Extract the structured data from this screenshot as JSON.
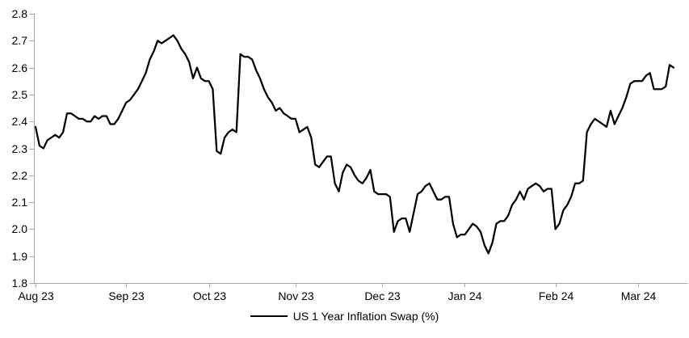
{
  "chart_data": {
    "type": "line",
    "title": "",
    "xlabel": "",
    "ylabel": "",
    "ylim": [
      1.8,
      2.8
    ],
    "y_ticks": [
      1.8,
      1.9,
      2.0,
      2.1,
      2.2,
      2.3,
      2.4,
      2.5,
      2.6,
      2.7,
      2.8
    ],
    "x_tick_labels": [
      "Aug 23",
      "Sep 23",
      "Oct 23",
      "Nov 23",
      "Dec 23",
      "Jan 24",
      "Feb 24",
      "Mar 24"
    ],
    "x_tick_indices": [
      0,
      23,
      44,
      66,
      88,
      109,
      132,
      153
    ],
    "grid": false,
    "legend_position": "bottom-center",
    "axis_color": "#a6a6a6",
    "text_color": "#000000",
    "series": [
      {
        "name": "US 1 Year Inflation Swap (%)",
        "color": "#000000",
        "values": [
          2.38,
          2.31,
          2.3,
          2.33,
          2.34,
          2.35,
          2.34,
          2.36,
          2.43,
          2.43,
          2.42,
          2.41,
          2.41,
          2.4,
          2.4,
          2.42,
          2.41,
          2.42,
          2.42,
          2.39,
          2.39,
          2.41,
          2.44,
          2.47,
          2.48,
          2.5,
          2.52,
          2.55,
          2.58,
          2.63,
          2.66,
          2.7,
          2.69,
          2.7,
          2.71,
          2.72,
          2.7,
          2.67,
          2.65,
          2.62,
          2.56,
          2.6,
          2.56,
          2.55,
          2.55,
          2.52,
          2.29,
          2.28,
          2.34,
          2.36,
          2.37,
          2.36,
          2.65,
          2.64,
          2.64,
          2.63,
          2.59,
          2.56,
          2.52,
          2.49,
          2.47,
          2.44,
          2.45,
          2.43,
          2.42,
          2.41,
          2.41,
          2.36,
          2.37,
          2.38,
          2.34,
          2.24,
          2.23,
          2.25,
          2.27,
          2.27,
          2.17,
          2.14,
          2.21,
          2.24,
          2.23,
          2.2,
          2.18,
          2.17,
          2.19,
          2.22,
          2.14,
          2.13,
          2.13,
          2.13,
          2.12,
          1.99,
          2.03,
          2.04,
          2.04,
          1.99,
          2.06,
          2.13,
          2.14,
          2.16,
          2.17,
          2.14,
          2.11,
          2.11,
          2.12,
          2.12,
          2.02,
          1.97,
          1.98,
          1.98,
          2.0,
          2.02,
          2.01,
          1.99,
          1.94,
          1.91,
          1.95,
          2.02,
          2.03,
          2.03,
          2.05,
          2.09,
          2.11,
          2.14,
          2.11,
          2.15,
          2.16,
          2.17,
          2.16,
          2.14,
          2.15,
          2.15,
          2.0,
          2.02,
          2.07,
          2.09,
          2.12,
          2.17,
          2.17,
          2.18,
          2.36,
          2.39,
          2.41,
          2.4,
          2.39,
          2.38,
          2.44,
          2.39,
          2.42,
          2.45,
          2.49,
          2.54,
          2.55,
          2.55,
          2.55,
          2.57,
          2.58,
          2.52,
          2.52,
          2.52,
          2.53,
          2.61,
          2.6
        ]
      }
    ]
  },
  "legend": {
    "label": "US 1 Year Inflation Swap (%)"
  }
}
